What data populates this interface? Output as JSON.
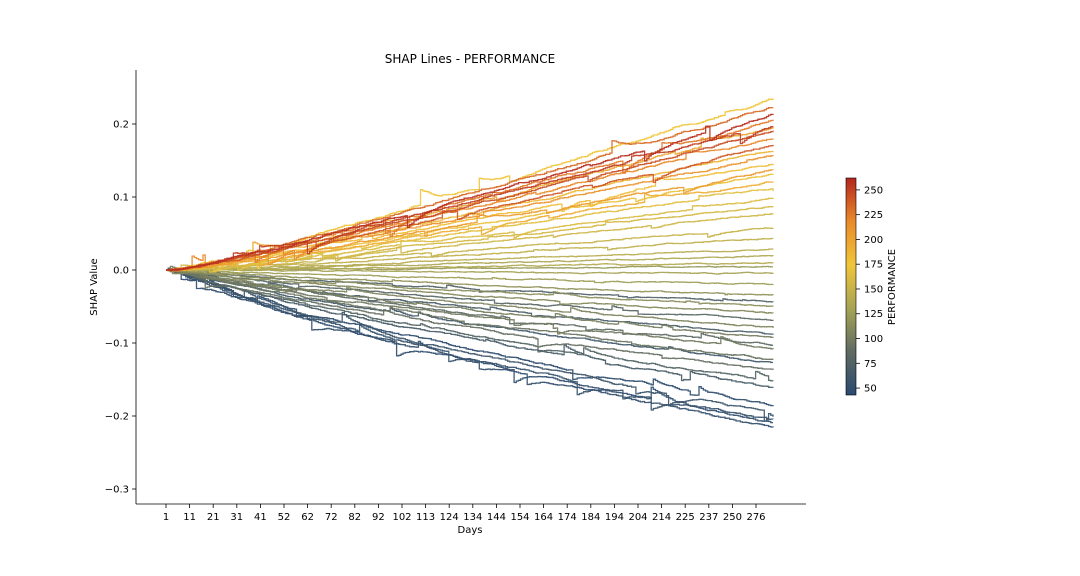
{
  "chart_data": {
    "type": "line",
    "title": "SHAP Lines - PERFORMANCE",
    "xlabel": "Days",
    "ylabel": "SHAP Value",
    "xlim": [
      -11,
      300
    ],
    "ylim": [
      -0.31,
      0.27
    ],
    "x_ticks": [
      "1",
      "11",
      "21",
      "31",
      "41",
      "52",
      "62",
      "72",
      "82",
      "92",
      "102",
      "113",
      "124",
      "134",
      "144",
      "154",
      "164",
      "174",
      "184",
      "194",
      "204",
      "214",
      "225",
      "237",
      "250",
      "276"
    ],
    "y_ticks": [
      0.2,
      0.1,
      0.0,
      -0.1,
      -0.2,
      -0.3
    ],
    "y_tick_labels": [
      "0.2",
      "0.1",
      "0.0",
      "−0.1",
      "−0.2",
      "−0.3"
    ],
    "grid": false,
    "colorbar": {
      "label": "PERFORMANCE",
      "range": [
        43,
        262
      ],
      "ticks": [
        "250",
        "225",
        "200",
        "175",
        "150",
        "125",
        "100",
        "75",
        "50"
      ],
      "colormap": [
        "#2b4a6f",
        "#5f6b62",
        "#a6a455",
        "#f0c63a",
        "#e98a2a",
        "#b3261e"
      ]
    },
    "series_description": "approx. 50 SHAP lines from 0 at day 1, colored by PERFORMANCE",
    "series": [
      {
        "performance": 258,
        "end_value": 0.22
      },
      {
        "performance": 252,
        "end_value": 0.205
      },
      {
        "performance": 245,
        "end_value": 0.195
      },
      {
        "performance": 240,
        "end_value": 0.175
      },
      {
        "performance": 232,
        "end_value": 0.23
      },
      {
        "performance": 225,
        "end_value": 0.21
      },
      {
        "performance": 218,
        "end_value": 0.185
      },
      {
        "performance": 212,
        "end_value": 0.16
      },
      {
        "performance": 205,
        "end_value": 0.14
      },
      {
        "performance": 198,
        "end_value": 0.2
      },
      {
        "performance": 192,
        "end_value": 0.125
      },
      {
        "performance": 186,
        "end_value": 0.17
      },
      {
        "performance": 180,
        "end_value": 0.15
      },
      {
        "performance": 175,
        "end_value": 0.24
      },
      {
        "performance": 170,
        "end_value": 0.135
      },
      {
        "performance": 166,
        "end_value": 0.115
      },
      {
        "performance": 162,
        "end_value": 0.1
      },
      {
        "performance": 158,
        "end_value": 0.09
      },
      {
        "performance": 154,
        "end_value": 0.08
      },
      {
        "performance": 150,
        "end_value": 0.06
      },
      {
        "performance": 146,
        "end_value": 0.045
      },
      {
        "performance": 142,
        "end_value": 0.03
      },
      {
        "performance": 138,
        "end_value": 0.01
      },
      {
        "performance": 134,
        "end_value": 0.02
      },
      {
        "performance": 130,
        "end_value": -0.005
      },
      {
        "performance": 125,
        "end_value": -0.02
      },
      {
        "performance": 121,
        "end_value": 0.005
      },
      {
        "performance": 117,
        "end_value": -0.035
      },
      {
        "performance": 113,
        "end_value": -0.05
      },
      {
        "performance": 109,
        "end_value": -0.06
      },
      {
        "performance": 105,
        "end_value": -0.08
      },
      {
        "performance": 101,
        "end_value": -0.095
      },
      {
        "performance": 97,
        "end_value": -0.11
      },
      {
        "performance": 93,
        "end_value": -0.125
      },
      {
        "performance": 89,
        "end_value": -0.14
      },
      {
        "performance": 85,
        "end_value": -0.105
      },
      {
        "performance": 81,
        "end_value": -0.07
      },
      {
        "performance": 77,
        "end_value": -0.155
      },
      {
        "performance": 73,
        "end_value": -0.045
      },
      {
        "performance": 69,
        "end_value": -0.09
      },
      {
        "performance": 65,
        "end_value": -0.165
      },
      {
        "performance": 61,
        "end_value": -0.13
      },
      {
        "performance": 57,
        "end_value": -0.2
      },
      {
        "performance": 53,
        "end_value": -0.21
      },
      {
        "performance": 50,
        "end_value": -0.22
      },
      {
        "performance": 47,
        "end_value": -0.215
      },
      {
        "performance": 45,
        "end_value": -0.19
      }
    ]
  }
}
